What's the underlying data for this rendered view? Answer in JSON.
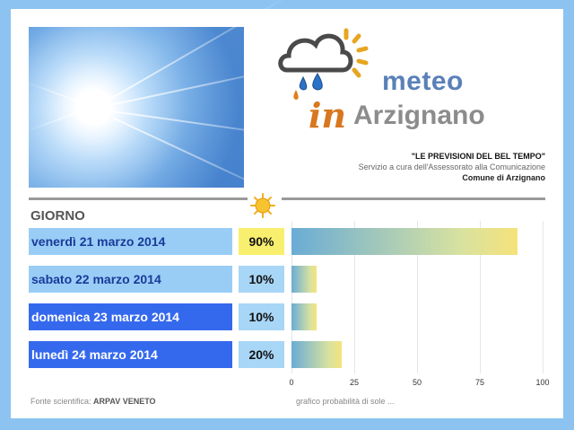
{
  "brand": {
    "logo_meteo": "meteo",
    "logo_in": "in",
    "logo_place": "Arzignano"
  },
  "header": {
    "tagline": "\"LE PREVISIONI DEL BEL TEMPO\"",
    "service": "Servizio a cura dell'Assessorato alla Comunicazione",
    "municipality": "Comune di Arzignano"
  },
  "table": {
    "column_title": "GIORNO",
    "rows": [
      {
        "day": "venerdì 21 marzo 2014",
        "percent": "90%"
      },
      {
        "day": "sabato 22 marzo 2014",
        "percent": "10%"
      },
      {
        "day": "domenica 23 marzo 2014",
        "percent": "10%"
      },
      {
        "day": "lunedì 24 marzo 2014",
        "percent": "20%"
      }
    ]
  },
  "chart_data": {
    "type": "bar",
    "orientation": "horizontal",
    "categories": [
      "venerdì 21 marzo 2014",
      "sabato 22 marzo 2014",
      "domenica 23 marzo 2014",
      "lunedì 24 marzo 2014"
    ],
    "values": [
      90,
      10,
      10,
      20
    ],
    "xlim": [
      0,
      100
    ],
    "xticks": [
      "0",
      "25",
      "50",
      "75",
      "100"
    ],
    "grid": true
  },
  "footer": {
    "source_label": "Fonte scientifica: ",
    "source_name": "ARPAV VENETO",
    "chart_caption": "grafico probabilità di sole ..."
  },
  "colors": {
    "page_border": "#8cc3f0",
    "row_light": "#99cdf6",
    "row_dark": "#3569ed",
    "percent_high": "#f8ef6e",
    "percent_low": "#a8d6f7"
  },
  "icons": {
    "sun": "sun-icon",
    "logo_cloud": "cloud-rain-sun-icon"
  }
}
